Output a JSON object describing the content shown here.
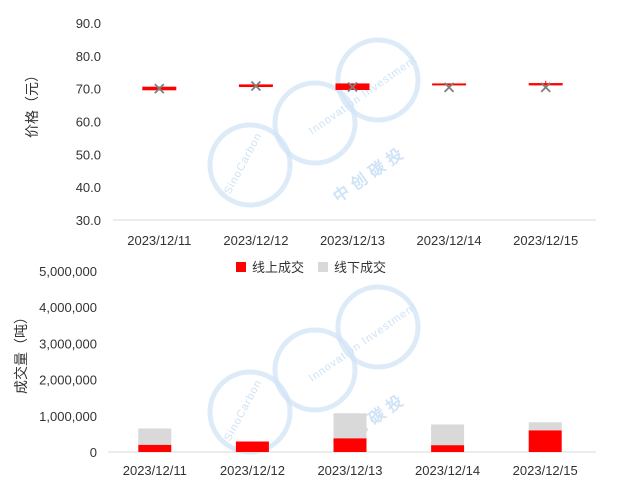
{
  "chart_data": [
    {
      "type": "candlestick",
      "ylabel": "价格（元）",
      "ylim": [
        30.0,
        90.0
      ],
      "yticks": [
        "90.0",
        "80.0",
        "70.0",
        "60.0",
        "50.0",
        "40.0",
        "30.0"
      ],
      "categories": [
        "2023/12/11",
        "2023/12/12",
        "2023/12/13",
        "2023/12/14",
        "2023/12/15"
      ],
      "candles": [
        {
          "open": 69.5,
          "close": 70.6,
          "high": 70.6,
          "low": 69.5
        },
        {
          "open": 70.5,
          "close": 71.3,
          "high": 71.3,
          "low": 70.5
        },
        {
          "open": 69.6,
          "close": 71.6,
          "high": 71.6,
          "low": 69.6
        },
        {
          "open": 71.0,
          "close": 71.6,
          "high": 71.6,
          "low": 71.0
        },
        {
          "open": 71.0,
          "close": 71.7,
          "high": 72.4,
          "low": 71.0
        }
      ],
      "offline_price": [
        70.0,
        70.8,
        70.5,
        70.4,
        70.4
      ],
      "colors": {
        "candle": "#ff0000",
        "marker": "#7f7f7f"
      }
    },
    {
      "type": "stacked-bar",
      "ylabel": "成交量（吨）",
      "ylim": [
        0,
        5000000
      ],
      "yticks": [
        "5,000,000",
        "4,000,000",
        "3,000,000",
        "2,000,000",
        "1,000,000",
        "0"
      ],
      "categories": [
        "2023/12/11",
        "2023/12/12",
        "2023/12/13",
        "2023/12/14",
        "2023/12/15"
      ],
      "legend": [
        "线上成交",
        "线下成交"
      ],
      "legend_position": "top-center",
      "series": [
        {
          "name": "线上成交",
          "color": "#ff0000",
          "values": [
            200000,
            290000,
            380000,
            190000,
            600000
          ]
        },
        {
          "name": "线下成交",
          "color": "#d9d9d9",
          "values": [
            450000,
            0,
            690000,
            570000,
            220000
          ]
        }
      ]
    }
  ],
  "watermark": {
    "en_left": "SinoCarbon",
    "en_right": "Innovation Investment",
    "cn": "中 创 碳 投",
    "color": "#cfe3f6"
  }
}
